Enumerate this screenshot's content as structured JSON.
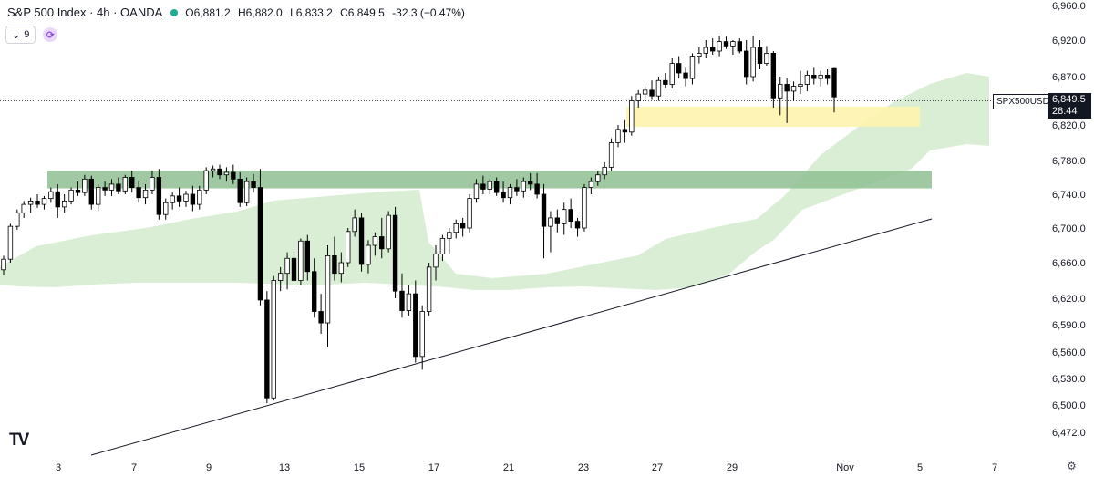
{
  "header": {
    "title": "S&P 500 Index · 4h · OANDA",
    "open": "O6,881.2",
    "high": "H6,882.0",
    "low": "L6,833.2",
    "close": "C6,849.5",
    "change": "-32.3 (−0.47%)",
    "status_color": "#22ab94"
  },
  "controls": {
    "indicator_count": "9",
    "sync_icon": "sync-icon"
  },
  "price_tag": {
    "symbol": "SPX500USD",
    "price": "6,849.5",
    "countdown": "28:44"
  },
  "logo": "TV",
  "colors": {
    "up_fill": "#ffffff",
    "down_fill": "#000000",
    "wick": "#000000",
    "cloud": "#cde8c8",
    "support_zone": "#8fbf93",
    "resistance_zone": "#fdf3ad"
  },
  "chart_data": {
    "type": "candlestick",
    "y_ticks": [
      6960,
      6920,
      6870,
      6820,
      6780,
      6740,
      6700,
      6660,
      6620,
      6590,
      6560,
      6530,
      6500,
      6472
    ],
    "y_tick_labels": [
      "6,960.0",
      "6,920.0",
      "6,870.0",
      "6,820.0",
      "6,780.0",
      "6,740.0",
      "6,700.0",
      "6,660.0",
      "6,620.0",
      "6,590.0",
      "6,560.0",
      "6,530.0",
      "6,500.0",
      "6,472.0"
    ],
    "x_tick_labels": [
      "3",
      "7",
      "9",
      "13",
      "15",
      "17",
      "21",
      "23",
      "27",
      "29",
      "Nov",
      "5",
      "7"
    ],
    "last_price": 6849.5,
    "zones": [
      {
        "name": "support",
        "low": 6747,
        "high": 6768
      },
      {
        "name": "resistance",
        "low": 6818,
        "high": 6839
      }
    ],
    "trendline": {
      "from": {
        "x": "Oct 06",
        "y": 6472
      },
      "to": {
        "x": "Nov 05",
        "y": 6710
      }
    },
    "candles": [
      [
        6652,
        6668,
        6646,
        6664
      ],
      [
        6664,
        6705,
        6660,
        6702
      ],
      [
        6702,
        6722,
        6698,
        6718
      ],
      [
        6718,
        6732,
        6712,
        6728
      ],
      [
        6728,
        6736,
        6718,
        6732
      ],
      [
        6732,
        6740,
        6724,
        6728
      ],
      [
        6728,
        6738,
        6722,
        6735
      ],
      [
        6735,
        6748,
        6730,
        6743
      ],
      [
        6743,
        6752,
        6712,
        6725
      ],
      [
        6725,
        6740,
        6718,
        6732
      ],
      [
        6732,
        6748,
        6728,
        6745
      ],
      [
        6745,
        6755,
        6738,
        6742
      ],
      [
        6742,
        6763,
        6738,
        6758
      ],
      [
        6758,
        6762,
        6722,
        6728
      ],
      [
        6728,
        6752,
        6720,
        6748
      ],
      [
        6748,
        6755,
        6738,
        6745
      ],
      [
        6745,
        6758,
        6738,
        6752
      ],
      [
        6752,
        6760,
        6740,
        6744
      ],
      [
        6744,
        6763,
        6740,
        6760
      ],
      [
        6760,
        6768,
        6742,
        6748
      ],
      [
        6748,
        6755,
        6730,
        6736
      ],
      [
        6736,
        6752,
        6728,
        6745
      ],
      [
        6745,
        6768,
        6740,
        6760
      ],
      [
        6760,
        6770,
        6710,
        6716
      ],
      [
        6716,
        6735,
        6710,
        6730
      ],
      [
        6730,
        6742,
        6722,
        6738
      ],
      [
        6738,
        6748,
        6725,
        6732
      ],
      [
        6732,
        6744,
        6725,
        6740
      ],
      [
        6740,
        6750,
        6720,
        6728
      ],
      [
        6728,
        6750,
        6722,
        6745
      ],
      [
        6745,
        6772,
        6740,
        6768
      ],
      [
        6768,
        6774,
        6760,
        6770
      ],
      [
        6770,
        6775,
        6758,
        6763
      ],
      [
        6763,
        6772,
        6755,
        6766
      ],
      [
        6766,
        6775,
        6752,
        6758
      ],
      [
        6758,
        6766,
        6725,
        6730
      ],
      [
        6730,
        6760,
        6726,
        6755
      ],
      [
        6755,
        6764,
        6742,
        6748
      ],
      [
        6748,
        6770,
        6612,
        6618
      ],
      [
        6618,
        6628,
        6502,
        6508
      ],
      [
        6508,
        6645,
        6505,
        6640
      ],
      [
        6640,
        6655,
        6628,
        6648
      ],
      [
        6648,
        6672,
        6630,
        6665
      ],
      [
        6665,
        6676,
        6632,
        6640
      ],
      [
        6640,
        6688,
        6635,
        6685
      ],
      [
        6685,
        6692,
        6640,
        6650
      ],
      [
        6650,
        6665,
        6598,
        6605
      ],
      [
        6605,
        6625,
        6580,
        6592
      ],
      [
        6592,
        6680,
        6565,
        6668
      ],
      [
        6668,
        6690,
        6640,
        6648
      ],
      [
        6648,
        6672,
        6638,
        6660
      ],
      [
        6660,
        6700,
        6655,
        6696
      ],
      [
        6696,
        6722,
        6690,
        6712
      ],
      [
        6712,
        6718,
        6650,
        6658
      ],
      [
        6658,
        6686,
        6648,
        6680
      ],
      [
        6680,
        6695,
        6668,
        6690
      ],
      [
        6690,
        6712,
        6665,
        6676
      ],
      [
        6676,
        6720,
        6672,
        6715
      ],
      [
        6715,
        6725,
        6620,
        6628
      ],
      [
        6628,
        6648,
        6598,
        6606
      ],
      [
        6606,
        6635,
        6600,
        6625
      ],
      [
        6625,
        6640,
        6548,
        6555
      ],
      [
        6555,
        6612,
        6540,
        6605
      ],
      [
        6605,
        6660,
        6600,
        6655
      ],
      [
        6655,
        6680,
        6640,
        6670
      ],
      [
        6670,
        6692,
        6662,
        6688
      ],
      [
        6688,
        6700,
        6670,
        6695
      ],
      [
        6695,
        6710,
        6688,
        6705
      ],
      [
        6705,
        6712,
        6690,
        6700
      ],
      [
        6700,
        6740,
        6695,
        6735
      ],
      [
        6735,
        6758,
        6730,
        6752
      ],
      [
        6752,
        6762,
        6740,
        6746
      ],
      [
        6746,
        6758,
        6740,
        6755
      ],
      [
        6755,
        6760,
        6738,
        6742
      ],
      [
        6742,
        6755,
        6730,
        6736
      ],
      [
        6736,
        6752,
        6728,
        6748
      ],
      [
        6748,
        6758,
        6738,
        6744
      ],
      [
        6744,
        6760,
        6736,
        6755
      ],
      [
        6755,
        6765,
        6745,
        6752
      ],
      [
        6752,
        6765,
        6735,
        6740
      ],
      [
        6740,
        6752,
        6665,
        6702
      ],
      [
        6702,
        6720,
        6672,
        6712
      ],
      [
        6712,
        6722,
        6695,
        6705
      ],
      [
        6705,
        6730,
        6692,
        6722
      ],
      [
        6722,
        6735,
        6700,
        6708
      ],
      [
        6708,
        6712,
        6690,
        6700
      ],
      [
        6700,
        6752,
        6696,
        6748
      ],
      [
        6748,
        6760,
        6740,
        6755
      ],
      [
        6755,
        6768,
        6750,
        6763
      ],
      [
        6763,
        6778,
        6758,
        6772
      ],
      [
        6772,
        6805,
        6768,
        6800
      ],
      [
        6800,
        6820,
        6795,
        6815
      ],
      [
        6815,
        6825,
        6800,
        6812
      ],
      [
        6812,
        6850,
        6808,
        6845
      ],
      [
        6845,
        6856,
        6838,
        6852
      ],
      [
        6852,
        6860,
        6846,
        6856
      ],
      [
        6856,
        6866,
        6846,
        6850
      ],
      [
        6850,
        6870,
        6845,
        6866
      ],
      [
        6866,
        6875,
        6858,
        6862
      ],
      [
        6862,
        6895,
        6858,
        6888
      ],
      [
        6888,
        6898,
        6868,
        6875
      ],
      [
        6875,
        6882,
        6860,
        6868
      ],
      [
        6868,
        6902,
        6862,
        6898
      ],
      [
        6898,
        6910,
        6888,
        6902
      ],
      [
        6902,
        6920,
        6895,
        6910
      ],
      [
        6910,
        6922,
        6900,
        6905
      ],
      [
        6905,
        6925,
        6898,
        6918
      ],
      [
        6918,
        6924,
        6908,
        6912
      ],
      [
        6912,
        6920,
        6900,
        6918
      ],
      [
        6918,
        6922,
        6902,
        6905
      ],
      [
        6905,
        6920,
        6862,
        6870
      ],
      [
        6870,
        6925,
        6865,
        6910
      ],
      [
        6910,
        6920,
        6880,
        6888
      ],
      [
        6888,
        6912,
        6885,
        6902
      ],
      [
        6902,
        6905,
        6838,
        6848
      ],
      [
        6848,
        6870,
        6830,
        6862
      ],
      [
        6862,
        6868,
        6822,
        6855
      ],
      [
        6855,
        6865,
        6845,
        6860
      ],
      [
        6860,
        6878,
        6852,
        6862
      ],
      [
        6862,
        6878,
        6855,
        6872
      ],
      [
        6872,
        6882,
        6862,
        6868
      ],
      [
        6868,
        6878,
        6860,
        6872
      ],
      [
        6872,
        6880,
        6862,
        6868
      ],
      [
        6881,
        6882,
        6833,
        6849
      ]
    ]
  }
}
